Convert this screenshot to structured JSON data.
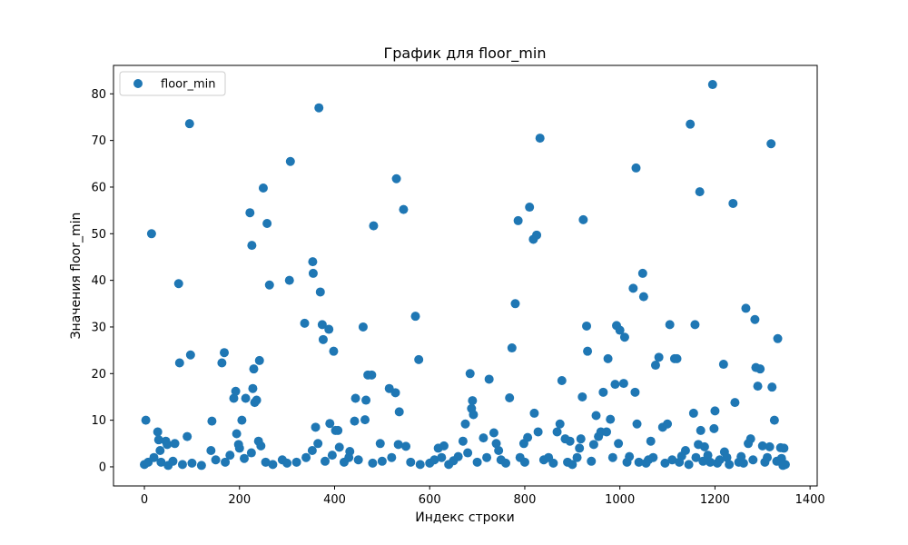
{
  "chart_data": {
    "type": "scatter",
    "title": "График для floor_min",
    "xlabel": "Индекс строки",
    "ylabel": "Значения floor_min",
    "xlim": [
      -65,
      1415
    ],
    "ylim": [
      -4.1,
      86.1
    ],
    "xticks": [
      0,
      200,
      400,
      600,
      800,
      1000,
      1200,
      1400
    ],
    "yticks": [
      0,
      10,
      20,
      30,
      40,
      50,
      60,
      70,
      80
    ],
    "legend": {
      "position": "top-left",
      "entries": [
        "floor_min"
      ]
    },
    "grid": false,
    "color": "#1f77b4",
    "series": [
      {
        "name": "floor_min",
        "points": [
          [
            3,
            10
          ],
          [
            15,
            50
          ],
          [
            28,
            7.5
          ],
          [
            30,
            5.8
          ],
          [
            33,
            3.5
          ],
          [
            45,
            5.5
          ],
          [
            48,
            4.8
          ],
          [
            64,
            5
          ],
          [
            72,
            39.3
          ],
          [
            74,
            22.3
          ],
          [
            90,
            6.5
          ],
          [
            95,
            73.6
          ],
          [
            97,
            24
          ],
          [
            140,
            3.5
          ],
          [
            142,
            9.8
          ],
          [
            163,
            22.3
          ],
          [
            168,
            24.5
          ],
          [
            188,
            14.7
          ],
          [
            192,
            16.2
          ],
          [
            194,
            7.1
          ],
          [
            198,
            4.8
          ],
          [
            200,
            4
          ],
          [
            205,
            10
          ],
          [
            213,
            14.7
          ],
          [
            222,
            54.5
          ],
          [
            226,
            47.5
          ],
          [
            228,
            16.8
          ],
          [
            230,
            21
          ],
          [
            232,
            13.8
          ],
          [
            236,
            14.3
          ],
          [
            240,
            5.5
          ],
          [
            242,
            22.8
          ],
          [
            245,
            4.5
          ],
          [
            250,
            59.8
          ],
          [
            258,
            52.2
          ],
          [
            263,
            39
          ],
          [
            305,
            40
          ],
          [
            307,
            65.5
          ],
          [
            337,
            30.8
          ],
          [
            353,
            3.5
          ],
          [
            354,
            44
          ],
          [
            355,
            41.5
          ],
          [
            360,
            8.5
          ],
          [
            365,
            5
          ],
          [
            367,
            77
          ],
          [
            370,
            37.5
          ],
          [
            374,
            30.5
          ],
          [
            376,
            27.3
          ],
          [
            388,
            29.5
          ],
          [
            390,
            9.3
          ],
          [
            398,
            24.8
          ],
          [
            402,
            7.8
          ],
          [
            407,
            7.8
          ],
          [
            410,
            4.2
          ],
          [
            432,
            3.3
          ],
          [
            442,
            9.8
          ],
          [
            444,
            14.7
          ],
          [
            460,
            30
          ],
          [
            464,
            10.1
          ],
          [
            466,
            14.3
          ],
          [
            470,
            19.7
          ],
          [
            478,
            19.7
          ],
          [
            482,
            51.7
          ],
          [
            496,
            5
          ],
          [
            515,
            16.8
          ],
          [
            528,
            15.9
          ],
          [
            530,
            61.8
          ],
          [
            534,
            4.8
          ],
          [
            536,
            11.8
          ],
          [
            545,
            55.2
          ],
          [
            550,
            4.4
          ],
          [
            570,
            32.3
          ],
          [
            577,
            23
          ],
          [
            618,
            4
          ],
          [
            630,
            4.5
          ],
          [
            670,
            5.5
          ],
          [
            675,
            9.2
          ],
          [
            680,
            3
          ],
          [
            685,
            20
          ],
          [
            688,
            12.5
          ],
          [
            690,
            14.2
          ],
          [
            692,
            11.2
          ],
          [
            713,
            6.2
          ],
          [
            725,
            18.8
          ],
          [
            735,
            7.3
          ],
          [
            740,
            5
          ],
          [
            745,
            3.5
          ],
          [
            768,
            14.8
          ],
          [
            773,
            25.5
          ],
          [
            780,
            35
          ],
          [
            786,
            52.8
          ],
          [
            798,
            5
          ],
          [
            806,
            6.3
          ],
          [
            810,
            55.7
          ],
          [
            818,
            48.8
          ],
          [
            820,
            11.5
          ],
          [
            825,
            49.7
          ],
          [
            828,
            7.5
          ],
          [
            832,
            70.5
          ],
          [
            868,
            7.5
          ],
          [
            874,
            9.2
          ],
          [
            878,
            18.5
          ],
          [
            885,
            6
          ],
          [
            895,
            5.5
          ],
          [
            915,
            4
          ],
          [
            918,
            6
          ],
          [
            921,
            15
          ],
          [
            923,
            53
          ],
          [
            930,
            30.2
          ],
          [
            932,
            24.8
          ],
          [
            945,
            4.8
          ],
          [
            950,
            11
          ],
          [
            955,
            6.5
          ],
          [
            960,
            7.5
          ],
          [
            965,
            16
          ],
          [
            972,
            7.5
          ],
          [
            975,
            23.2
          ],
          [
            980,
            10.2
          ],
          [
            990,
            17.7
          ],
          [
            993,
            30.3
          ],
          [
            997,
            5
          ],
          [
            1000,
            29.3
          ],
          [
            1008,
            17.9
          ],
          [
            1010,
            27.8
          ],
          [
            1028,
            38.3
          ],
          [
            1032,
            16
          ],
          [
            1034,
            64.1
          ],
          [
            1036,
            9.2
          ],
          [
            1048,
            41.5
          ],
          [
            1050,
            36.5
          ],
          [
            1065,
            5.5
          ],
          [
            1075,
            21.8
          ],
          [
            1082,
            23.5
          ],
          [
            1090,
            8.5
          ],
          [
            1100,
            9.2
          ],
          [
            1105,
            30.5
          ],
          [
            1115,
            23.2
          ],
          [
            1120,
            23.2
          ],
          [
            1138,
            3.5
          ],
          [
            1148,
            73.5
          ],
          [
            1155,
            11.5
          ],
          [
            1158,
            30.5
          ],
          [
            1165,
            4.8
          ],
          [
            1168,
            59
          ],
          [
            1170,
            7.8
          ],
          [
            1178,
            4.3
          ],
          [
            1195,
            82
          ],
          [
            1198,
            8.2
          ],
          [
            1200,
            12
          ],
          [
            1218,
            22
          ],
          [
            1220,
            3.2
          ],
          [
            1238,
            56.5
          ],
          [
            1242,
            13.8
          ],
          [
            1265,
            34
          ],
          [
            1270,
            5
          ],
          [
            1275,
            6
          ],
          [
            1284,
            31.6
          ],
          [
            1286,
            21.3
          ],
          [
            1290,
            17.3
          ],
          [
            1295,
            21
          ],
          [
            1300,
            4.5
          ],
          [
            1315,
            4.3
          ],
          [
            1318,
            69.3
          ],
          [
            1320,
            17.1
          ],
          [
            1325,
            10
          ],
          [
            1332,
            27.5
          ],
          [
            1338,
            4.1
          ],
          [
            1345,
            4
          ],
          [
            1348,
            0.5
          ],
          [
            0,
            0.5
          ],
          [
            8,
            1
          ],
          [
            20,
            2
          ],
          [
            35,
            1
          ],
          [
            50,
            0.3
          ],
          [
            60,
            1.2
          ],
          [
            80,
            0.5
          ],
          [
            100,
            0.8
          ],
          [
            120,
            0.3
          ],
          [
            150,
            1.5
          ],
          [
            170,
            1
          ],
          [
            180,
            2.5
          ],
          [
            210,
            1.8
          ],
          [
            225,
            3
          ],
          [
            255,
            1
          ],
          [
            270,
            0.5
          ],
          [
            290,
            1.5
          ],
          [
            300,
            0.8
          ],
          [
            320,
            1
          ],
          [
            340,
            2
          ],
          [
            380,
            1.2
          ],
          [
            395,
            2.5
          ],
          [
            420,
            1
          ],
          [
            430,
            2
          ],
          [
            450,
            1.5
          ],
          [
            480,
            0.8
          ],
          [
            500,
            1.2
          ],
          [
            520,
            2
          ],
          [
            560,
            1
          ],
          [
            580,
            0.5
          ],
          [
            600,
            0.8
          ],
          [
            610,
            1.5
          ],
          [
            625,
            2
          ],
          [
            640,
            0.5
          ],
          [
            650,
            1.3
          ],
          [
            660,
            2.2
          ],
          [
            700,
            1
          ],
          [
            720,
            2
          ],
          [
            750,
            1.5
          ],
          [
            760,
            0.8
          ],
          [
            790,
            2
          ],
          [
            800,
            1
          ],
          [
            840,
            1.5
          ],
          [
            850,
            2
          ],
          [
            860,
            0.8
          ],
          [
            890,
            1
          ],
          [
            900,
            0.5
          ],
          [
            910,
            2
          ],
          [
            940,
            1.2
          ],
          [
            985,
            2
          ],
          [
            1015,
            1
          ],
          [
            1020,
            2.2
          ],
          [
            1040,
            1
          ],
          [
            1055,
            0.8
          ],
          [
            1060,
            1.5
          ],
          [
            1070,
            2
          ],
          [
            1095,
            0.8
          ],
          [
            1110,
            1.5
          ],
          [
            1125,
            1
          ],
          [
            1130,
            2.3
          ],
          [
            1145,
            0.5
          ],
          [
            1160,
            2
          ],
          [
            1175,
            1.2
          ],
          [
            1185,
            2.5
          ],
          [
            1190,
            1
          ],
          [
            1205,
            0.8
          ],
          [
            1210,
            1.5
          ],
          [
            1225,
            2
          ],
          [
            1230,
            0.5
          ],
          [
            1250,
            1
          ],
          [
            1255,
            2.2
          ],
          [
            1260,
            0.8
          ],
          [
            1280,
            1.5
          ],
          [
            1305,
            1
          ],
          [
            1310,
            2
          ],
          [
            1330,
            1.2
          ],
          [
            1340,
            1.8
          ],
          [
            1343,
            0.3
          ]
        ]
      }
    ]
  }
}
